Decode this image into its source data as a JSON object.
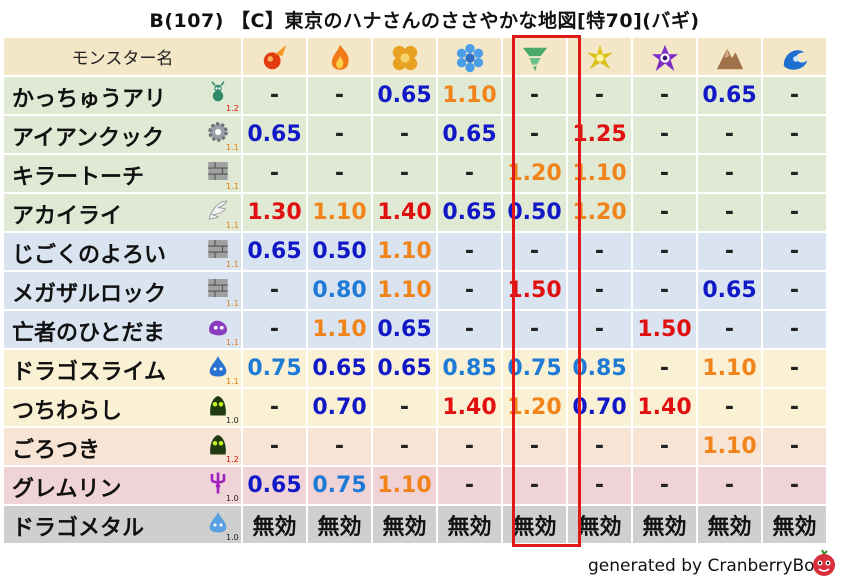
{
  "title": "B(107) 【C】東京のハナさんのささやかな地図[特70](バギ)",
  "header": {
    "name_col": "モンスター名",
    "elements": [
      {
        "name": "fire-bolt-icon",
        "color": "#e33b10"
      },
      {
        "name": "flame-icon",
        "color": "#f07a18"
      },
      {
        "name": "explosion-icon",
        "color": "#e8a020"
      },
      {
        "name": "ice-icon",
        "color": "#4a9ee8"
      },
      {
        "name": "wind-icon",
        "color": "#4aa86a"
      },
      {
        "name": "lightning-icon",
        "color": "#d8c21a"
      },
      {
        "name": "darkness-icon",
        "color": "#7a2cc4"
      },
      {
        "name": "earth-icon",
        "color": "#a0724a"
      },
      {
        "name": "water-icon",
        "color": "#1e70d0"
      }
    ]
  },
  "rows": [
    {
      "name": "かっちゅうアリ",
      "icon": "ant-icon",
      "ver": "1.2",
      "bg": "r-green",
      "values": [
        {
          "t": "-",
          "c": "dash"
        },
        {
          "t": "-",
          "c": "dash"
        },
        {
          "t": "0.65",
          "c": "c-blue"
        },
        {
          "t": "1.10",
          "c": "c-orange"
        },
        {
          "t": "-",
          "c": "dash"
        },
        {
          "t": "-",
          "c": "dash"
        },
        {
          "t": "-",
          "c": "dash"
        },
        {
          "t": "0.65",
          "c": "c-blue"
        },
        {
          "t": "-",
          "c": "dash"
        }
      ]
    },
    {
      "name": "アイアンクック",
      "icon": "gear-icon",
      "ver": "1.1",
      "bg": "r-green",
      "values": [
        {
          "t": "0.65",
          "c": "c-blue"
        },
        {
          "t": "-",
          "c": "dash"
        },
        {
          "t": "-",
          "c": "dash"
        },
        {
          "t": "0.65",
          "c": "c-blue"
        },
        {
          "t": "-",
          "c": "dash"
        },
        {
          "t": "1.25",
          "c": "c-red"
        },
        {
          "t": "-",
          "c": "dash"
        },
        {
          "t": "-",
          "c": "dash"
        },
        {
          "t": "-",
          "c": "dash"
        }
      ]
    },
    {
      "name": "キラートーチ",
      "icon": "brick-icon",
      "ver": "1.1",
      "bg": "r-green",
      "values": [
        {
          "t": "-",
          "c": "dash"
        },
        {
          "t": "-",
          "c": "dash"
        },
        {
          "t": "-",
          "c": "dash"
        },
        {
          "t": "-",
          "c": "dash"
        },
        {
          "t": "1.20",
          "c": "c-orange"
        },
        {
          "t": "1.10",
          "c": "c-orange"
        },
        {
          "t": "-",
          "c": "dash"
        },
        {
          "t": "-",
          "c": "dash"
        },
        {
          "t": "-",
          "c": "dash"
        }
      ]
    },
    {
      "name": "アカイライ",
      "icon": "wing-icon",
      "ver": "1.1",
      "bg": "r-green",
      "values": [
        {
          "t": "1.30",
          "c": "c-red"
        },
        {
          "t": "1.10",
          "c": "c-orange"
        },
        {
          "t": "1.40",
          "c": "c-red"
        },
        {
          "t": "0.65",
          "c": "c-blue"
        },
        {
          "t": "0.50",
          "c": "c-blue"
        },
        {
          "t": "1.20",
          "c": "c-orange"
        },
        {
          "t": "-",
          "c": "dash"
        },
        {
          "t": "-",
          "c": "dash"
        },
        {
          "t": "-",
          "c": "dash"
        }
      ]
    },
    {
      "name": "じごくのよろい",
      "icon": "brick-icon",
      "ver": "1.1",
      "bg": "r-blue",
      "values": [
        {
          "t": "0.65",
          "c": "c-blue"
        },
        {
          "t": "0.50",
          "c": "c-blue"
        },
        {
          "t": "1.10",
          "c": "c-orange"
        },
        {
          "t": "-",
          "c": "dash"
        },
        {
          "t": "-",
          "c": "dash"
        },
        {
          "t": "-",
          "c": "dash"
        },
        {
          "t": "-",
          "c": "dash"
        },
        {
          "t": "-",
          "c": "dash"
        },
        {
          "t": "-",
          "c": "dash"
        }
      ]
    },
    {
      "name": "メガザルロック",
      "icon": "brick-icon",
      "ver": "1.1",
      "bg": "r-blue",
      "values": [
        {
          "t": "-",
          "c": "dash"
        },
        {
          "t": "0.80",
          "c": "c-light"
        },
        {
          "t": "1.10",
          "c": "c-orange"
        },
        {
          "t": "-",
          "c": "dash"
        },
        {
          "t": "1.50",
          "c": "c-red"
        },
        {
          "t": "-",
          "c": "dash"
        },
        {
          "t": "-",
          "c": "dash"
        },
        {
          "t": "0.65",
          "c": "c-blue"
        },
        {
          "t": "-",
          "c": "dash"
        }
      ]
    },
    {
      "name": "亡者のひとだま",
      "icon": "ghost-icon",
      "ver": "1.1",
      "bg": "r-blue",
      "values": [
        {
          "t": "-",
          "c": "dash"
        },
        {
          "t": "1.10",
          "c": "c-orange"
        },
        {
          "t": "0.65",
          "c": "c-blue"
        },
        {
          "t": "-",
          "c": "dash"
        },
        {
          "t": "-",
          "c": "dash"
        },
        {
          "t": "-",
          "c": "dash"
        },
        {
          "t": "1.50",
          "c": "c-red"
        },
        {
          "t": "-",
          "c": "dash"
        },
        {
          "t": "-",
          "c": "dash"
        }
      ]
    },
    {
      "name": "ドラゴスライム",
      "icon": "slime-icon",
      "ver": "1.1",
      "bg": "r-yellow",
      "values": [
        {
          "t": "0.75",
          "c": "c-light"
        },
        {
          "t": "0.65",
          "c": "c-blue"
        },
        {
          "t": "0.65",
          "c": "c-blue"
        },
        {
          "t": "0.85",
          "c": "c-light"
        },
        {
          "t": "0.75",
          "c": "c-light"
        },
        {
          "t": "0.85",
          "c": "c-light"
        },
        {
          "t": "-",
          "c": "dash"
        },
        {
          "t": "1.10",
          "c": "c-orange"
        },
        {
          "t": "-",
          "c": "dash"
        }
      ]
    },
    {
      "name": "つちわらし",
      "icon": "mud-icon",
      "ver": "1.0",
      "bg": "r-yellow",
      "values": [
        {
          "t": "-",
          "c": "dash"
        },
        {
          "t": "0.70",
          "c": "c-blue"
        },
        {
          "t": "-",
          "c": "dash"
        },
        {
          "t": "1.40",
          "c": "c-red"
        },
        {
          "t": "1.20",
          "c": "c-orange"
        },
        {
          "t": "0.70",
          "c": "c-blue"
        },
        {
          "t": "1.40",
          "c": "c-red"
        },
        {
          "t": "-",
          "c": "dash"
        },
        {
          "t": "-",
          "c": "dash"
        }
      ]
    },
    {
      "name": "ごろつき",
      "icon": "mud-icon",
      "ver": "1.2",
      "bg": "r-peach",
      "values": [
        {
          "t": "-",
          "c": "dash"
        },
        {
          "t": "-",
          "c": "dash"
        },
        {
          "t": "-",
          "c": "dash"
        },
        {
          "t": "-",
          "c": "dash"
        },
        {
          "t": "-",
          "c": "dash"
        },
        {
          "t": "-",
          "c": "dash"
        },
        {
          "t": "-",
          "c": "dash"
        },
        {
          "t": "1.10",
          "c": "c-orange"
        },
        {
          "t": "-",
          "c": "dash"
        }
      ]
    },
    {
      "name": "グレムリン",
      "icon": "trident-icon",
      "ver": "1.0",
      "bg": "r-pink",
      "values": [
        {
          "t": "0.65",
          "c": "c-blue"
        },
        {
          "t": "0.75",
          "c": "c-light"
        },
        {
          "t": "1.10",
          "c": "c-orange"
        },
        {
          "t": "-",
          "c": "dash"
        },
        {
          "t": "-",
          "c": "dash"
        },
        {
          "t": "-",
          "c": "dash"
        },
        {
          "t": "-",
          "c": "dash"
        },
        {
          "t": "-",
          "c": "dash"
        },
        {
          "t": "-",
          "c": "dash"
        }
      ]
    },
    {
      "name": "ドラゴメタル",
      "icon": "metal-slime-icon",
      "ver": "1.0",
      "bg": "r-gray",
      "values": [
        {
          "t": "無効",
          "c": "c-black"
        },
        {
          "t": "無効",
          "c": "c-black"
        },
        {
          "t": "無効",
          "c": "c-black"
        },
        {
          "t": "無効",
          "c": "c-black"
        },
        {
          "t": "無効",
          "c": "c-black"
        },
        {
          "t": "無効",
          "c": "c-black"
        },
        {
          "t": "無効",
          "c": "c-black"
        },
        {
          "t": "無効",
          "c": "c-black"
        },
        {
          "t": "無効",
          "c": "c-black"
        }
      ]
    }
  ],
  "highlight_column": 4,
  "footer": "generated by CranberryBot"
}
